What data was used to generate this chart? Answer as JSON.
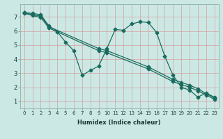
{
  "xlabel": "Humidex (Indice chaleur)",
  "bg_color": "#cce8e4",
  "line_color": "#1a6b5e",
  "grid_color": "#aacfca",
  "xlim": [
    -0.5,
    23.5
  ],
  "ylim": [
    0.5,
    7.9
  ],
  "xticks": [
    0,
    1,
    2,
    3,
    4,
    5,
    6,
    7,
    8,
    9,
    10,
    11,
    12,
    13,
    14,
    15,
    16,
    17,
    18,
    19,
    20,
    21,
    22,
    23
  ],
  "yticks": [
    1,
    2,
    3,
    4,
    5,
    6,
    7
  ],
  "line_wiggly_x": [
    0,
    1,
    2,
    3,
    4,
    5,
    6,
    7,
    8,
    9,
    10,
    11,
    12,
    13,
    14,
    15,
    16,
    17,
    18,
    19,
    20,
    21,
    22,
    23
  ],
  "line_wiggly_y": [
    7.3,
    7.25,
    7.15,
    6.35,
    5.95,
    5.2,
    4.6,
    2.85,
    3.2,
    3.5,
    4.75,
    6.1,
    6.05,
    6.5,
    6.65,
    6.6,
    5.9,
    4.2,
    2.85,
    2.0,
    1.8,
    1.3,
    1.6,
    1.3
  ],
  "line_straight1_x": [
    0,
    1,
    2,
    3,
    9,
    10,
    15,
    18,
    19,
    20,
    21,
    22,
    23
  ],
  "line_straight1_y": [
    7.3,
    7.15,
    7.05,
    6.3,
    4.75,
    4.6,
    3.45,
    2.55,
    2.35,
    2.15,
    1.9,
    1.55,
    1.25
  ],
  "line_straight2_x": [
    0,
    1,
    2,
    3,
    9,
    10,
    15,
    18,
    19,
    20,
    21,
    22,
    23
  ],
  "line_straight2_y": [
    7.25,
    7.1,
    6.95,
    6.2,
    4.6,
    4.45,
    3.3,
    2.4,
    2.2,
    2.0,
    1.75,
    1.45,
    1.15
  ]
}
